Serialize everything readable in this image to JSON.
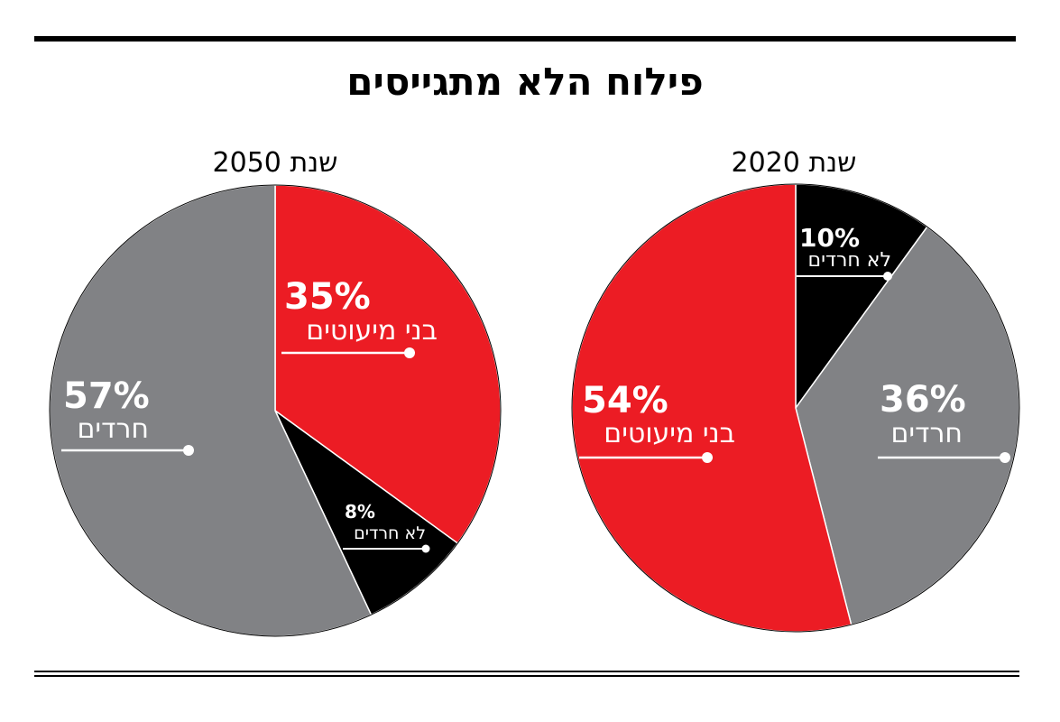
{
  "title": "פילוח הלא מתגייסים",
  "colors": {
    "red": "#ec1c24",
    "gray": "#818285",
    "black": "#000000",
    "line": "#000000",
    "label": "#ffffff"
  },
  "chart_data": [
    {
      "type": "pie",
      "title": "שנת 2050",
      "slices": [
        {
          "label": "בני מיעוטים",
          "value": 35,
          "display": "35%",
          "color": "#ec1c24"
        },
        {
          "label": "לא חרדים",
          "value": 8,
          "display": "8%",
          "color": "#000000"
        },
        {
          "label": "חרדים",
          "value": 57,
          "display": "57%",
          "color": "#818285"
        }
      ]
    },
    {
      "type": "pie",
      "title": "שנת 2020",
      "slices": [
        {
          "label": "לא חרדים",
          "value": 10,
          "display": "10%",
          "color": "#000000"
        },
        {
          "label": "חרדים",
          "value": 36,
          "display": "36%",
          "color": "#818285"
        },
        {
          "label": "בני מיעוטים",
          "value": 54,
          "display": "54%",
          "color": "#ec1c24"
        }
      ]
    }
  ]
}
